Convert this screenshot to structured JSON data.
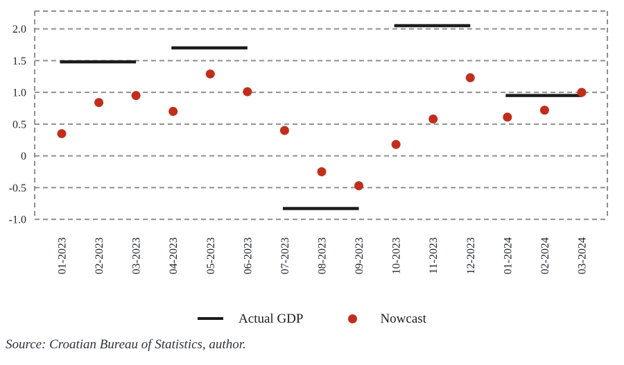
{
  "page": {
    "source_note": "Source: Croatian Bureau of Statistics, author."
  },
  "chart_data": {
    "type": "scatter",
    "title": "",
    "xlabel": "",
    "ylabel": "",
    "categories": [
      "01-2023",
      "02-2023",
      "03-2023",
      "04-2023",
      "05-2023",
      "06-2023",
      "07-2023",
      "08-2023",
      "09-2023",
      "10-2023",
      "11-2023",
      "12-2023",
      "01-2024",
      "02-2024",
      "03-2024"
    ],
    "series": [
      {
        "name": "Actual GDP",
        "style": "horizontal-segment",
        "color": "#1c1c1c",
        "segments": [
          {
            "from": "01-2023",
            "to": "03-2023",
            "value": 1.48
          },
          {
            "from": "04-2023",
            "to": "06-2023",
            "value": 1.7
          },
          {
            "from": "07-2023",
            "to": "09-2023",
            "value": -0.83
          },
          {
            "from": "10-2023",
            "to": "12-2023",
            "value": 2.05
          },
          {
            "from": "01-2024",
            "to": "03-2024",
            "value": 0.95
          }
        ]
      },
      {
        "name": "Nowcast",
        "style": "scatter",
        "color": "#c12f1c",
        "values": [
          0.35,
          0.84,
          0.95,
          0.7,
          1.29,
          1.01,
          0.4,
          -0.25,
          -0.47,
          0.18,
          0.58,
          1.23,
          0.61,
          0.72,
          1.0
        ]
      }
    ],
    "ylim": [
      -1.0,
      2.28
    ],
    "yticks": {
      "values": [
        2.0,
        1.5,
        1.0,
        0.5,
        0,
        -0.5,
        -1.0
      ],
      "labels": [
        "2.0",
        "1.5",
        "1.0",
        "0.5",
        "0",
        "-0.5",
        "-1.0"
      ]
    },
    "grid": {
      "horizontal": true,
      "style": "dashed",
      "color": "#8f8f8f"
    },
    "frame": {
      "style": "dashed",
      "color": "#8f8f8f"
    },
    "legend_position": "bottom-center"
  }
}
